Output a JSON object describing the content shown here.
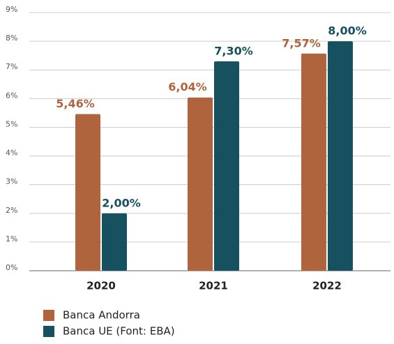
{
  "chart_data": {
    "type": "bar",
    "categories": [
      "2020",
      "2021",
      "2022"
    ],
    "series": [
      {
        "name": "Banca Andorra",
        "color": "#b0643e",
        "values": [
          5.46,
          6.04,
          7.57
        ],
        "value_labels": [
          "5,46%",
          "6,04%",
          "7,57%"
        ]
      },
      {
        "name": "Banca UE (Font: EBA)",
        "color": "#17505f",
        "values": [
          2.0,
          7.3,
          8.0
        ],
        "value_labels": [
          "2,00%",
          "7,30%",
          "8,00%"
        ]
      }
    ],
    "ylim": [
      0,
      9
    ],
    "yticks": [
      {
        "value": 0,
        "label": "0%"
      },
      {
        "value": 1,
        "label": "1%"
      },
      {
        "value": 2,
        "label": "2%"
      },
      {
        "value": 3,
        "label": "3%"
      },
      {
        "value": 4,
        "label": "4%"
      },
      {
        "value": 5,
        "label": "5%"
      },
      {
        "value": 6,
        "label": "6%"
      },
      {
        "value": 7,
        "label": "7%"
      },
      {
        "value": 8,
        "label": "8%"
      },
      {
        "value": 9,
        "label": "9%"
      }
    ],
    "grid": true
  }
}
